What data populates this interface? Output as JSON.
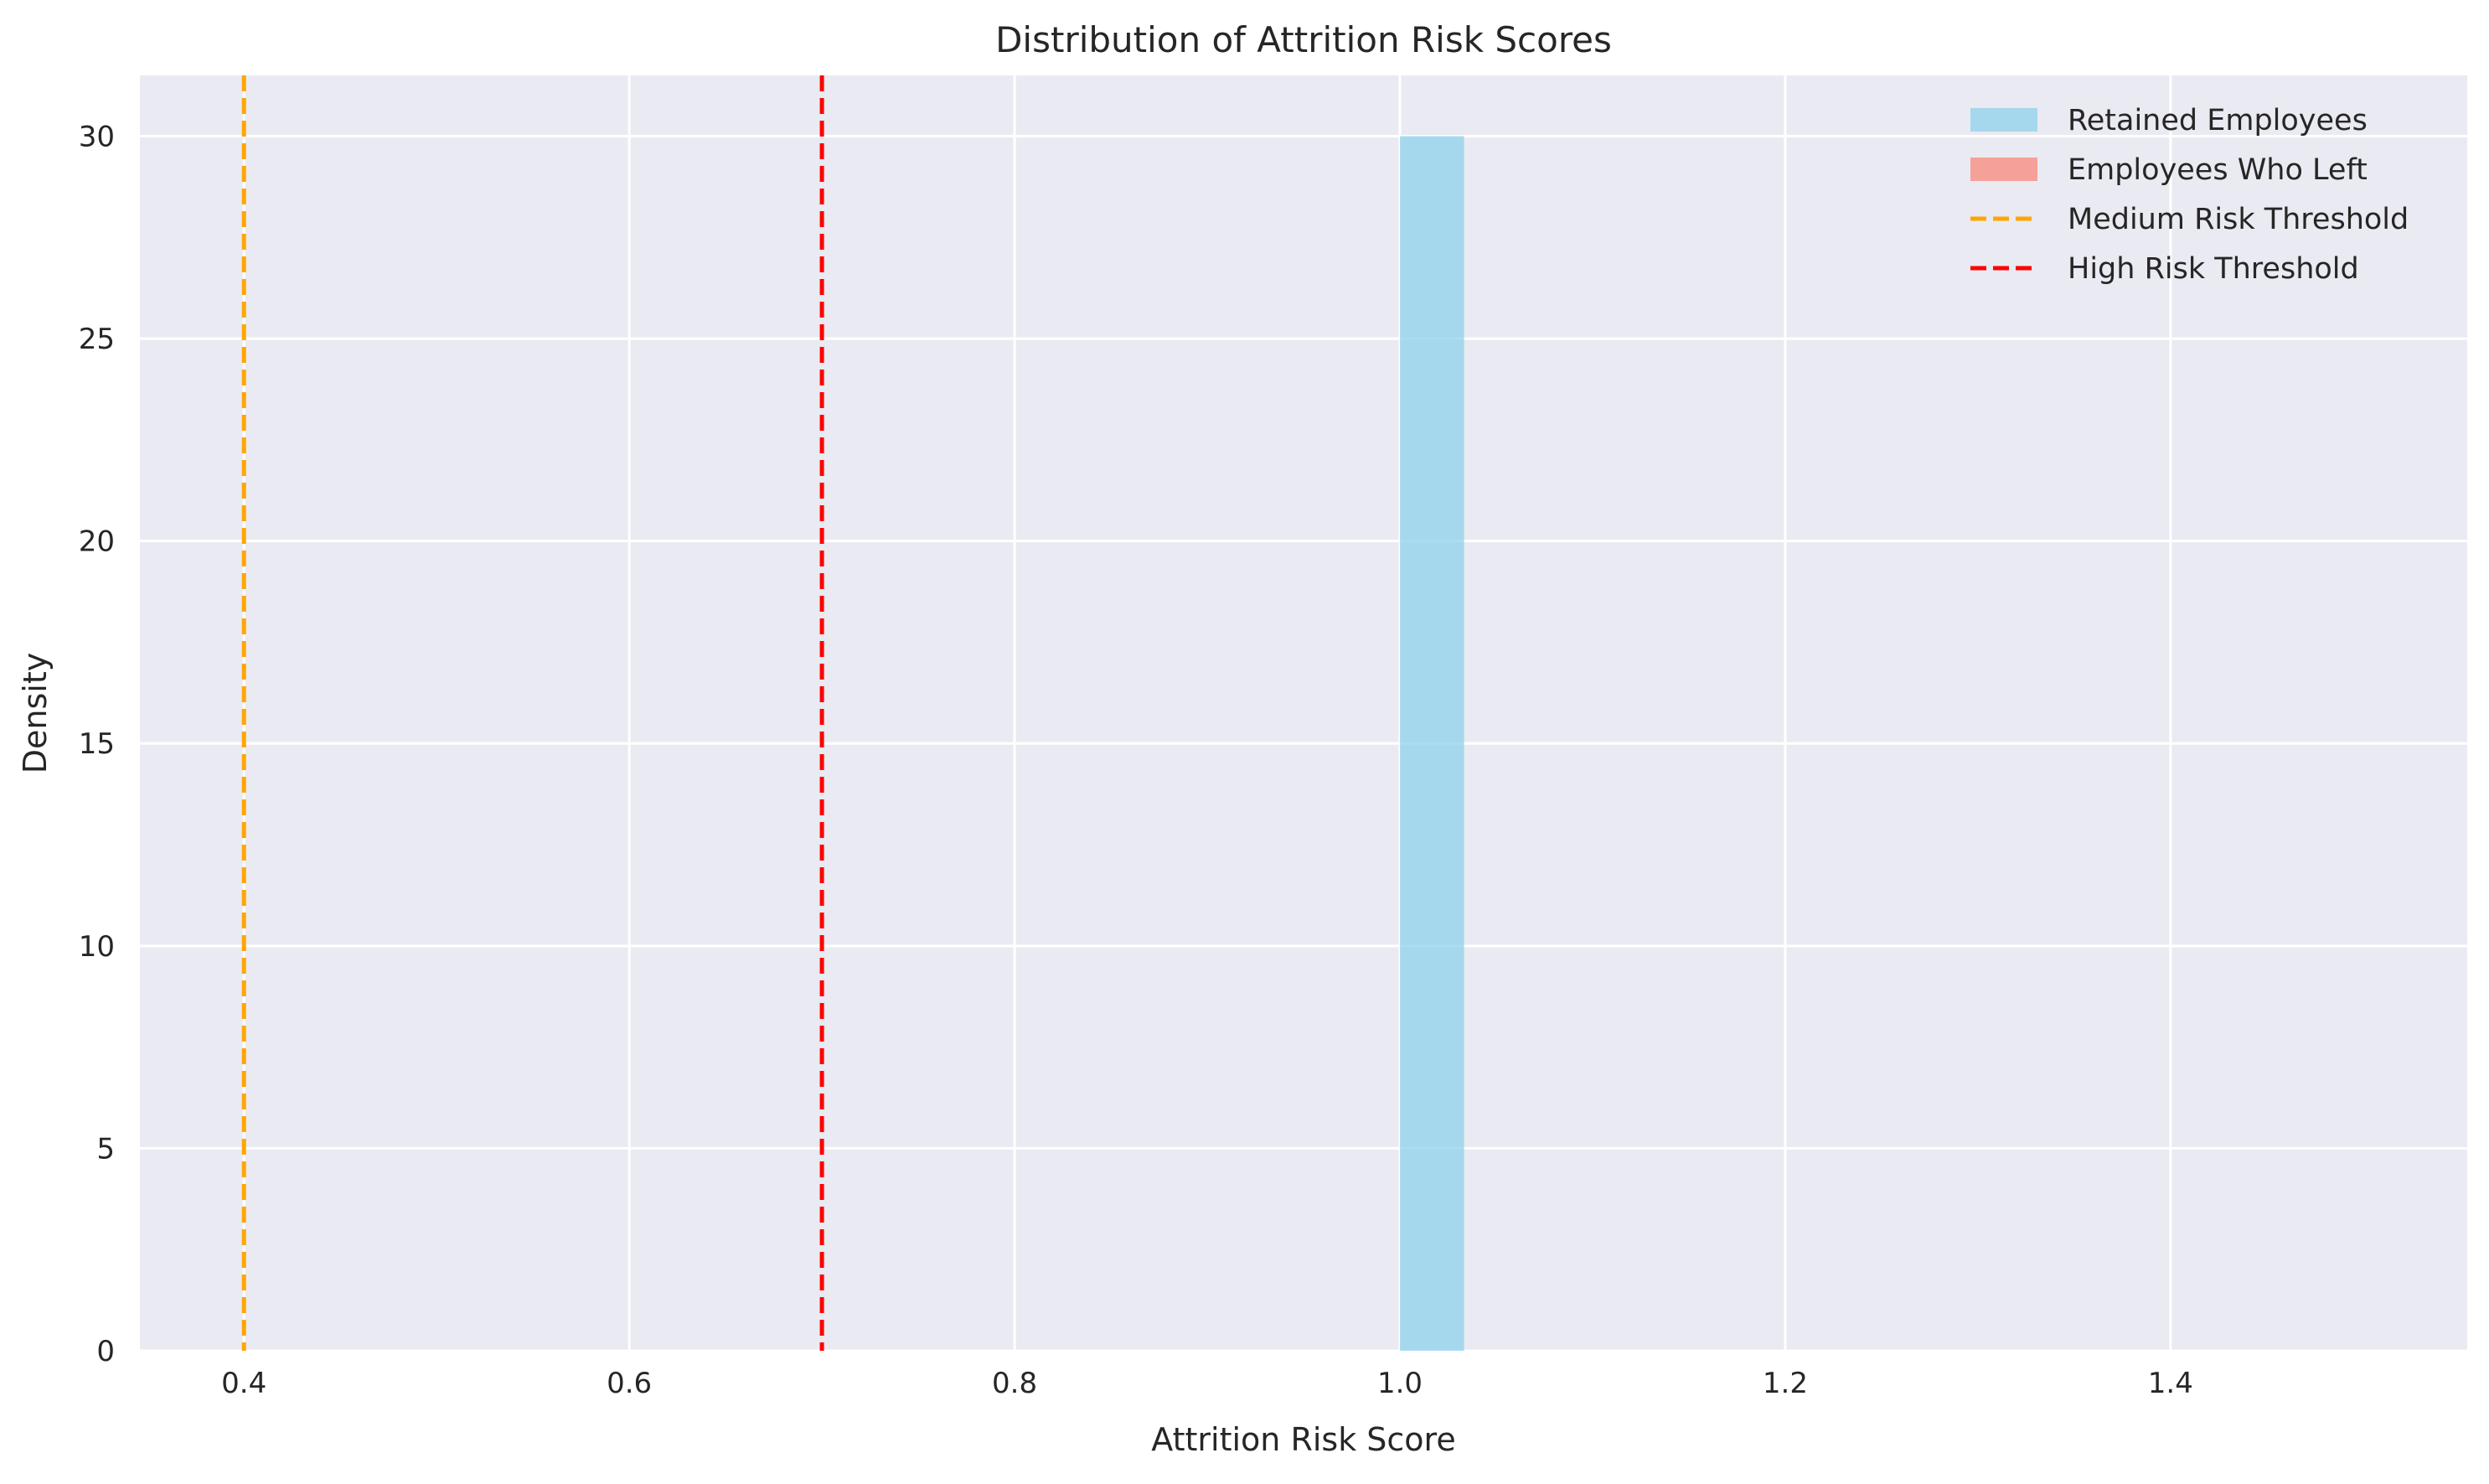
{
  "chart_data": {
    "type": "bar",
    "title": "Distribution of Attrition Risk Scores",
    "xlabel": "Attrition Risk Score",
    "ylabel": "Density",
    "xlim": [
      0.346,
      1.554
    ],
    "ylim": [
      0,
      31.5
    ],
    "xticks": [
      0.4,
      0.6,
      0.8,
      1.0,
      1.2,
      1.4
    ],
    "xtick_labels": [
      "0.4",
      "0.6",
      "0.8",
      "1.0",
      "1.2",
      "1.4"
    ],
    "yticks": [
      0,
      5,
      10,
      15,
      20,
      25,
      30
    ],
    "ytick_labels": [
      "0",
      "5",
      "10",
      "15",
      "20",
      "25",
      "30"
    ],
    "grid": true,
    "legend_position": "top-right",
    "series": [
      {
        "name": "Retained Employees",
        "kind": "histogram",
        "color": "#87ceeb",
        "opacity": 0.7,
        "bins": [
          {
            "x0": 1.0,
            "x1": 1.0333,
            "value": 30
          }
        ]
      },
      {
        "name": "Employees Who Left",
        "kind": "histogram",
        "color": "#fa8072",
        "opacity": 0.7,
        "bins": []
      }
    ],
    "reference_lines": [
      {
        "name": "Medium Risk Threshold",
        "x": 0.4,
        "color": "#ffa500",
        "style": "dashed"
      },
      {
        "name": "High Risk Threshold",
        "x": 0.7,
        "color": "#ff0000",
        "style": "dashed"
      }
    ],
    "colors": {
      "plot_background": "#eaeaf2",
      "grid": "#ffffff",
      "text": "#262626"
    }
  }
}
